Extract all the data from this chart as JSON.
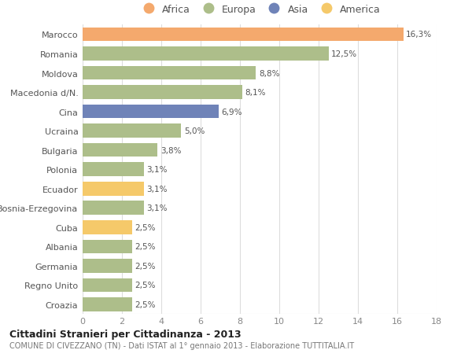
{
  "countries": [
    "Marocco",
    "Romania",
    "Moldova",
    "Macedonia d/N.",
    "Cina",
    "Ucraina",
    "Bulgaria",
    "Polonia",
    "Ecuador",
    "Bosnia-Erzegovina",
    "Cuba",
    "Albania",
    "Germania",
    "Regno Unito",
    "Croazia"
  ],
  "values": [
    16.3,
    12.5,
    8.8,
    8.1,
    6.9,
    5.0,
    3.8,
    3.1,
    3.1,
    3.1,
    2.5,
    2.5,
    2.5,
    2.5,
    2.5
  ],
  "labels": [
    "16,3%",
    "12,5%",
    "8,8%",
    "8,1%",
    "6,9%",
    "5,0%",
    "3,8%",
    "3,1%",
    "3,1%",
    "3,1%",
    "2,5%",
    "2,5%",
    "2,5%",
    "2,5%",
    "2,5%"
  ],
  "colors": [
    "#F4A96D",
    "#ADBE8A",
    "#ADBE8A",
    "#ADBE8A",
    "#6F83B8",
    "#ADBE8A",
    "#ADBE8A",
    "#ADBE8A",
    "#F5C96A",
    "#ADBE8A",
    "#F5C96A",
    "#ADBE8A",
    "#ADBE8A",
    "#ADBE8A",
    "#ADBE8A"
  ],
  "legend_labels": [
    "Africa",
    "Europa",
    "Asia",
    "America"
  ],
  "legend_colors": [
    "#F4A96D",
    "#ADBE8A",
    "#6F83B8",
    "#F5C96A"
  ],
  "title": "Cittadini Stranieri per Cittadinanza - 2013",
  "subtitle": "COMUNE DI CIVEZZANO (TN) - Dati ISTAT al 1° gennaio 2013 - Elaborazione TUTTITALIA.IT",
  "xlim": [
    0,
    18
  ],
  "xticks": [
    0,
    2,
    4,
    6,
    8,
    10,
    12,
    14,
    16,
    18
  ],
  "bg_color": "#FFFFFF",
  "grid_color": "#DDDDDD",
  "bar_height": 0.72
}
